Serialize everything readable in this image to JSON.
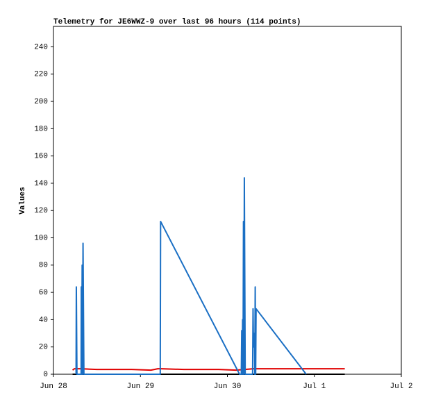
{
  "chart_data": {
    "type": "line",
    "title": "Telemetry for JE6WWZ-9 over last 96 hours (114 points)",
    "y_label": "Values",
    "xlim": [
      28,
      32
    ],
    "xticks": [
      {
        "value": 28,
        "label": "Jun 28"
      },
      {
        "value": 29,
        "label": "Jun 29"
      },
      {
        "value": 30,
        "label": "Jun 30"
      },
      {
        "value": 31,
        "label": "Jul 1"
      },
      {
        "value": 32,
        "label": "Jul 2"
      }
    ],
    "ylim": [
      0,
      255
    ],
    "yticks": [
      0,
      20,
      40,
      60,
      80,
      100,
      120,
      140,
      160,
      180,
      200,
      220,
      240
    ],
    "grid": false,
    "series": [
      {
        "color": "#000000",
        "x": [
          28.22,
          31.35
        ],
        "values": [
          0,
          0
        ]
      },
      {
        "color": "#e00000",
        "x": [
          28.22,
          28.24,
          28.32,
          28.5,
          28.7,
          28.9,
          29.12,
          29.2,
          29.24,
          29.5,
          29.9,
          30.1,
          30.3,
          30.6,
          31.0,
          31.35
        ],
        "values": [
          3,
          4,
          4,
          3.5,
          3.5,
          3.5,
          3,
          4,
          4,
          3.5,
          3.5,
          3,
          4,
          4,
          4,
          4
        ]
      },
      {
        "color": "#1a6fc4",
        "x": [
          28.26,
          28.263,
          28.27,
          28.318,
          28.32,
          28.325,
          28.33,
          28.335,
          28.34,
          28.35,
          29.228,
          29.232,
          30.14,
          30.16,
          30.165,
          30.17,
          30.175,
          30.18,
          30.185,
          30.19,
          30.195,
          30.205,
          30.29,
          30.295,
          30.3,
          30.31,
          30.315,
          30.32,
          30.325,
          30.33,
          30.906
        ],
        "values": [
          0,
          64,
          0,
          0,
          64,
          0,
          80,
          0,
          96,
          0,
          0,
          112,
          0,
          0,
          32,
          0,
          40,
          0,
          112,
          0,
          144,
          0,
          0,
          48,
          20,
          30,
          0,
          64,
          0,
          48,
          0
        ]
      }
    ]
  }
}
